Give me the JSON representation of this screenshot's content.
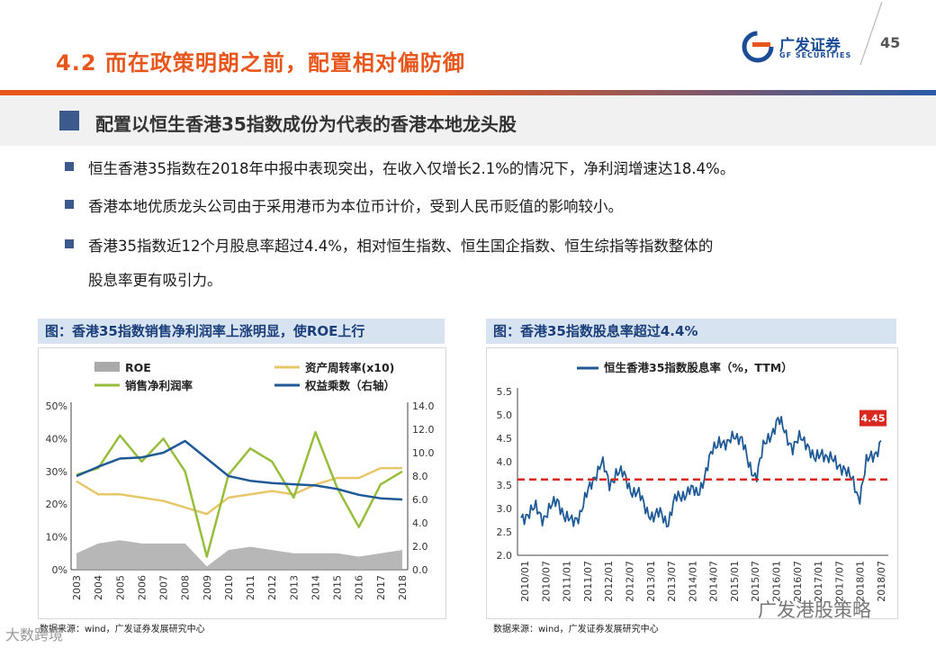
{
  "header": {
    "title": "4.2 而在政策明朗之前，配置相对偏防御",
    "logo_cn": "广发证券",
    "logo_en": "GF SECURITIES",
    "page_number": "45"
  },
  "section": {
    "heading": "配置以恒生香港35指数成份为代表的香港本地龙头股"
  },
  "bullets": [
    "恒生香港35指数在2018年中报中表现突出，在收入仅增长2.1%的情况下，净利润增速达18.4%。",
    "香港本地优质龙头公司由于采用港币为本位币计价，受到人民币贬值的影响较小。",
    "香港35指数近12个月股息率超过4.4%，相对恒生指数、恒生国企指数、恒生综指等指数整体的",
    "股息率更有吸引力。"
  ],
  "left_panel": {
    "title": "图：香港35指数销售净利润率上涨明显，使ROE上行",
    "source": "数据来源：wind，广发证券发展研究中心"
  },
  "right_panel": {
    "title": "图：香港35指数股息率超过4.4%",
    "source": "数据来源：wind，广发证券发展研究中心"
  },
  "watermarks": {
    "left": "大数跨境",
    "right": "广发港股策略"
  },
  "colors": {
    "accent": "#e8561b",
    "brand": "#1b4d97",
    "roe": "#aaaaaa",
    "turnover": "#e6c86a",
    "margin": "#96be3c",
    "leverage": "#1f5a96",
    "dividend": "#1f5a96",
    "threshold": "#d9281f"
  },
  "chart_data": [
    {
      "type": "line",
      "title": "图：香港35指数销售净利润率上涨明显，使ROE上行",
      "categories": [
        "2003",
        "2004",
        "2005",
        "2006",
        "2007",
        "2008",
        "2009",
        "2010",
        "2011",
        "2012",
        "2013",
        "2014",
        "2015",
        "2016",
        "2017",
        "2018"
      ],
      "y_left": {
        "ticks": [
          "0%",
          "10%",
          "20%",
          "30%",
          "40%",
          "50%"
        ],
        "ylim": [
          0,
          50
        ]
      },
      "y_right": {
        "ticks": [
          "0.0",
          "2.0",
          "4.0",
          "6.0",
          "8.0",
          "10.0",
          "12.0",
          "14.0"
        ],
        "ylim": [
          0,
          14
        ]
      },
      "legend": [
        "ROE",
        "资产周转率(x10)",
        "销售净利润率",
        "权益乘数（右轴）"
      ],
      "series": [
        {
          "name": "ROE",
          "kind": "area",
          "axis": "left",
          "values": [
            5,
            8,
            9,
            8,
            8,
            8,
            1,
            6,
            7,
            6,
            5,
            5,
            5,
            4,
            5,
            6
          ]
        },
        {
          "name": "资产周转率(x10)",
          "kind": "line",
          "axis": "left",
          "values": [
            27,
            23,
            23,
            22,
            21,
            19,
            17,
            22,
            23,
            24,
            23,
            26,
            28,
            28,
            31,
            31
          ]
        },
        {
          "name": "销售净利润率",
          "kind": "line",
          "axis": "left",
          "values": [
            29,
            31,
            41,
            33,
            40,
            30,
            4,
            29,
            37,
            33,
            22,
            42,
            25,
            13,
            26,
            30
          ]
        },
        {
          "name": "权益乘数（右轴）",
          "kind": "line",
          "axis": "right",
          "values": [
            8.0,
            8.8,
            9.5,
            9.6,
            10.0,
            11.0,
            9.5,
            8.0,
            7.6,
            7.4,
            7.3,
            7.2,
            6.9,
            6.4,
            6.1,
            6.0
          ]
        }
      ]
    },
    {
      "type": "line",
      "title": "图：香港35指数股息率超过4.4%",
      "legend": [
        "恒生香港35指数股息率（%，TTM）"
      ],
      "x_ticks": [
        "2010/01",
        "2010/07",
        "2011/01",
        "2011/07",
        "2012/01",
        "2012/07",
        "2013/01",
        "2013/07",
        "2014/01",
        "2014/07",
        "2015/01",
        "2015/07",
        "2016/01",
        "2016/07",
        "2017/01",
        "2017/07",
        "2018/01",
        "2018/07"
      ],
      "y_ticks": [
        "2.0",
        "2.5",
        "3.0",
        "3.5",
        "4.0",
        "4.5",
        "5.0",
        "5.5"
      ],
      "ylim": [
        2.0,
        5.5
      ],
      "threshold": 3.62,
      "last_value_label": "4.45",
      "series": [
        {
          "name": "恒生香港35指数股息率（%，TTM）",
          "values": [
            2.8,
            2.9,
            3.0,
            2.8,
            3.0,
            3.2,
            2.8,
            2.7,
            2.9,
            3.3,
            3.7,
            4.0,
            3.5,
            3.8,
            3.7,
            3.4,
            3.3,
            3.0,
            2.8,
            2.9,
            2.7,
            3.2,
            3.3,
            3.4,
            3.3,
            3.7,
            4.2,
            4.5,
            4.3,
            4.6,
            4.5,
            3.9,
            3.7,
            4.3,
            4.6,
            4.9,
            4.6,
            4.3,
            4.5,
            4.4,
            4.0,
            4.2,
            4.1,
            3.9,
            3.9,
            3.6,
            3.2,
            4.0,
            4.1,
            4.45
          ]
        }
      ]
    }
  ]
}
